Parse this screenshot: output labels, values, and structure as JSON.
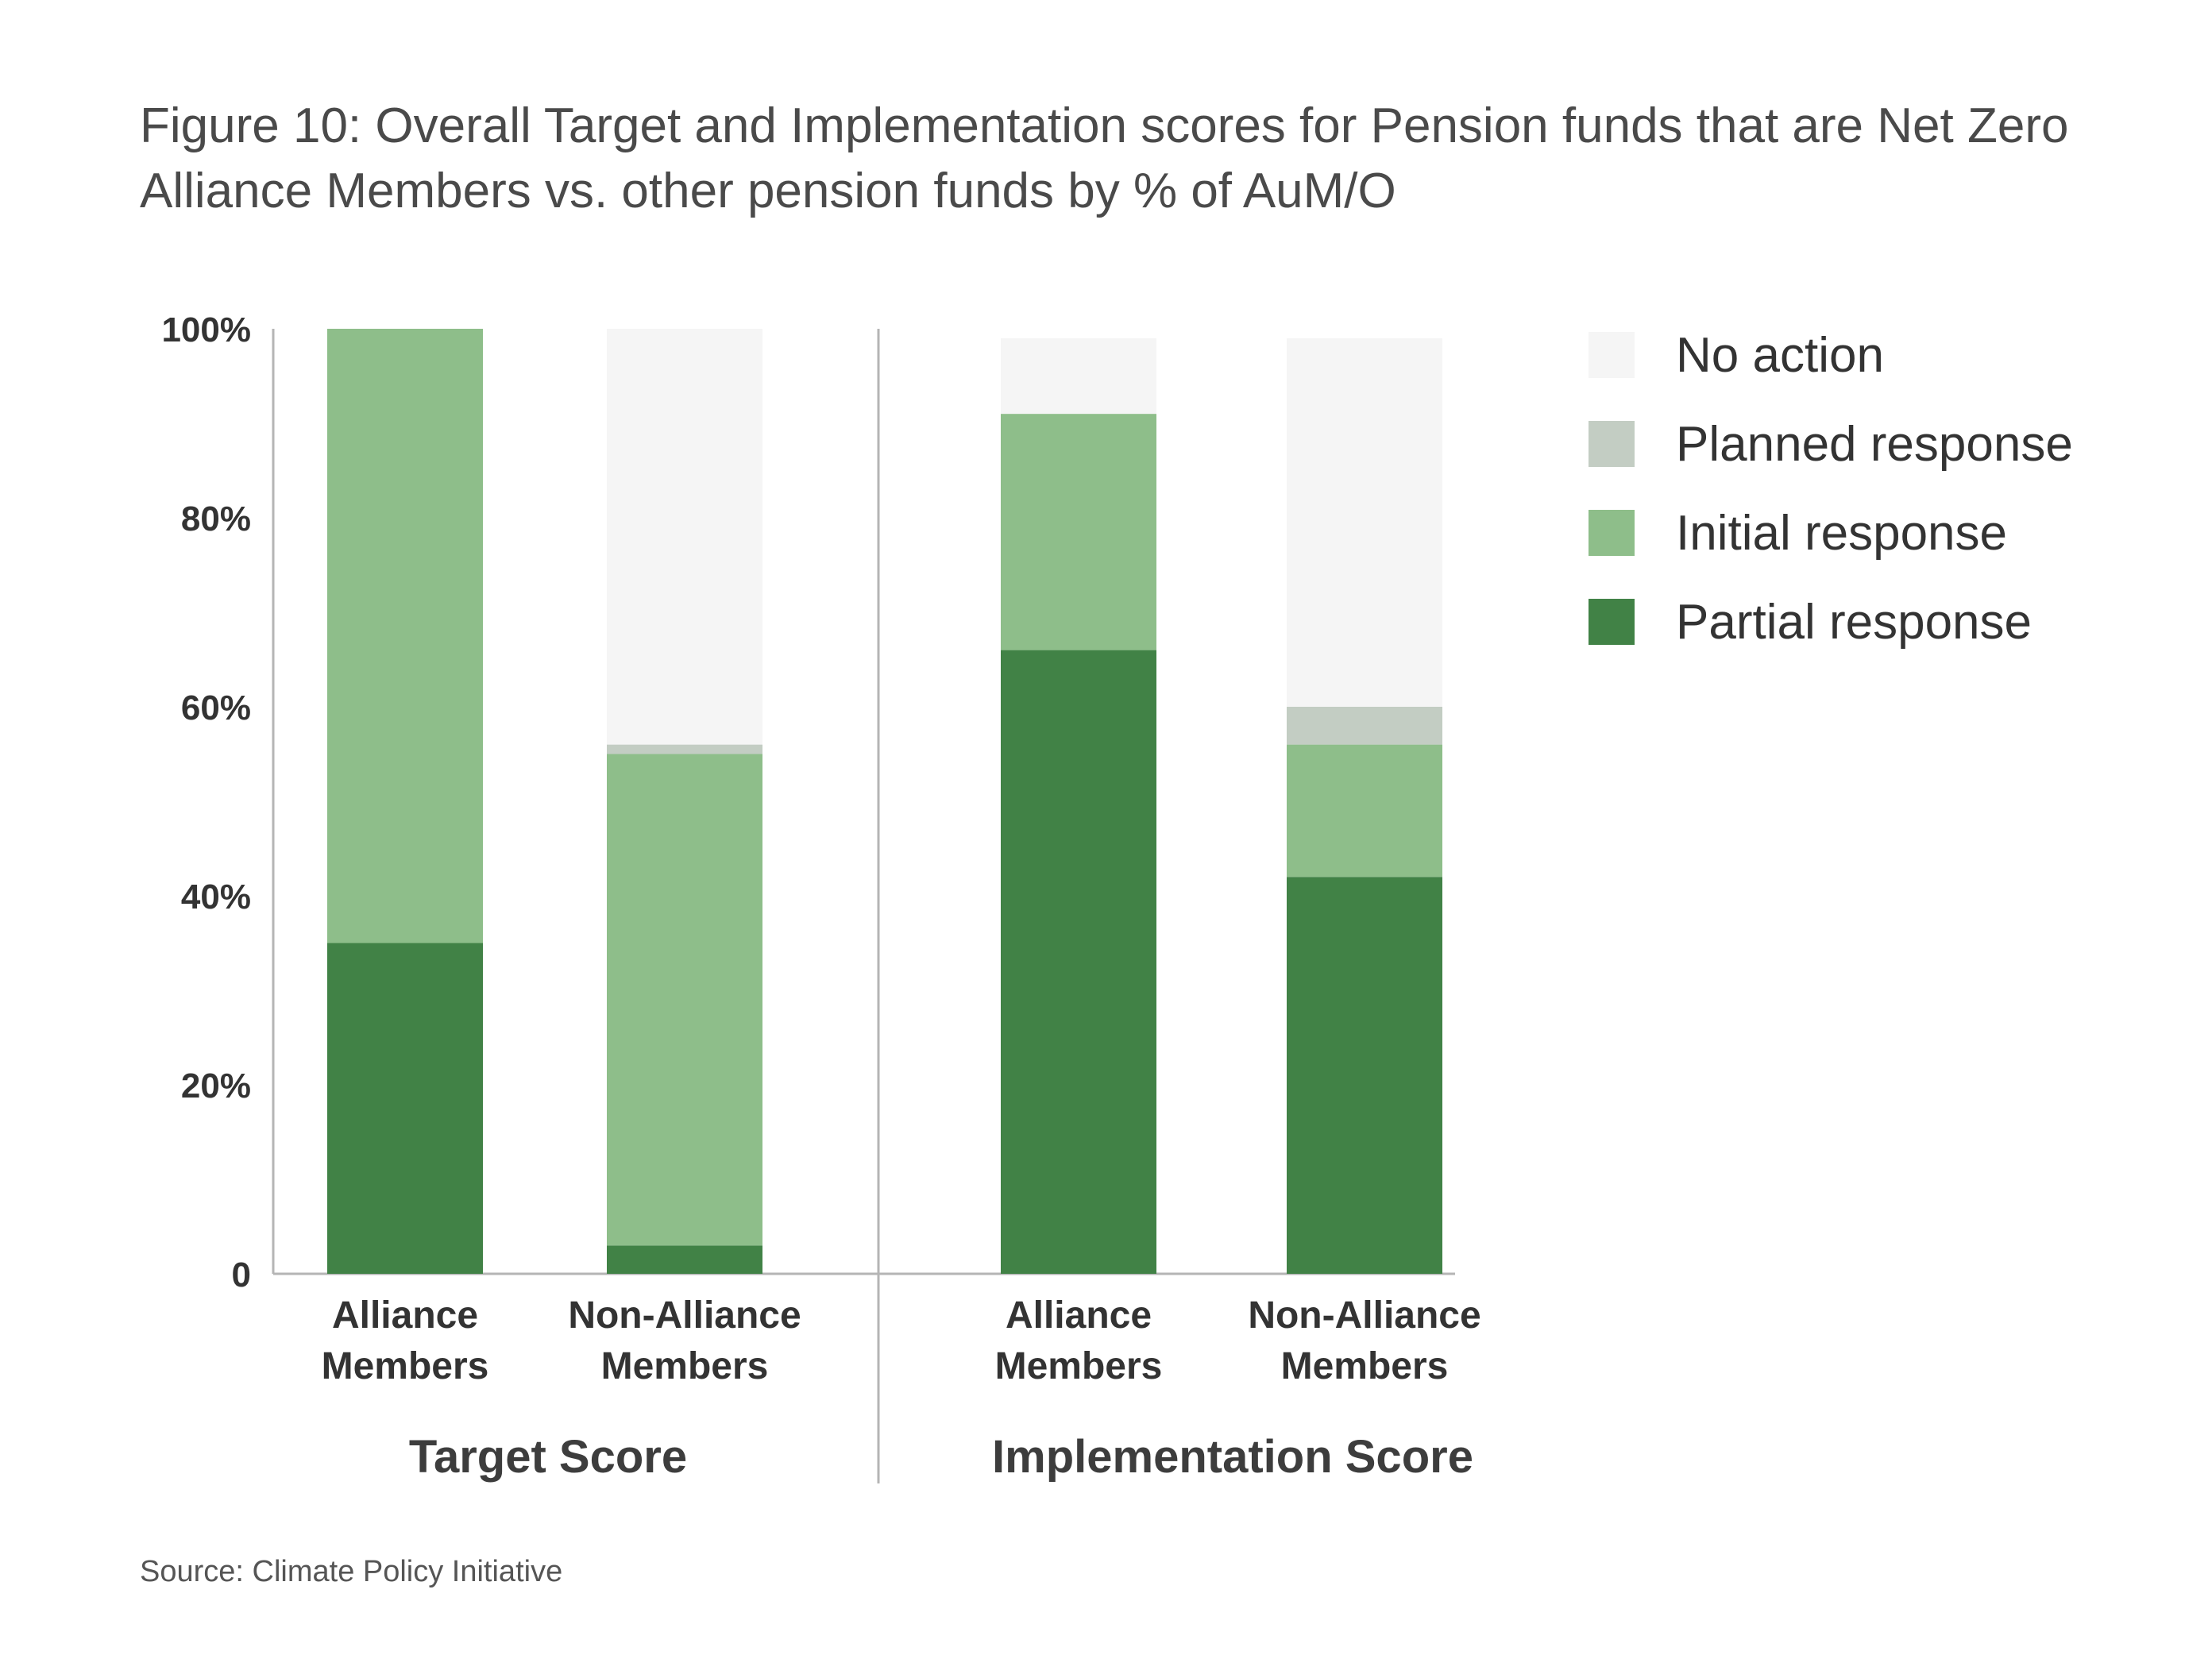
{
  "title_line1": "Figure 10: Overall Target and Implementation scores for Pension funds that are Net Zero",
  "title_line2": "Alliance Members vs. other pension funds by % of AuM/O",
  "source": "Source: Climate Policy Initiative",
  "chart_data": {
    "type": "bar",
    "stacked": true,
    "ylim": [
      0,
      100
    ],
    "yticks": [
      {
        "value": 0,
        "label": "0"
      },
      {
        "value": 20,
        "label": "20%"
      },
      {
        "value": 40,
        "label": "40%"
      },
      {
        "value": 60,
        "label": "60%"
      },
      {
        "value": 80,
        "label": "80%"
      },
      {
        "value": 100,
        "label": "100%"
      }
    ],
    "groups": [
      {
        "label": "Target Score",
        "categories": [
          "Alliance Members",
          "Non-Alliance Members"
        ]
      },
      {
        "label": "Implementation Score",
        "categories": [
          "Alliance Members",
          "Non-Alliance Members"
        ]
      }
    ],
    "category_lines": {
      "Alliance Members": [
        "Alliance",
        "Members"
      ],
      "Non-Alliance Members": [
        "Non-Alliance",
        "Members"
      ]
    },
    "series": [
      {
        "name": "Partial response",
        "color": "#418246",
        "values": [
          35,
          3,
          66,
          42
        ]
      },
      {
        "name": "Initial response",
        "color": "#8ebe8a",
        "values": [
          65,
          52,
          25,
          14
        ]
      },
      {
        "name": "Planned response",
        "color": "#c3cdc3",
        "values": [
          0,
          1,
          0,
          4
        ]
      },
      {
        "name": "No action",
        "color": "#f5f5f5",
        "values": [
          0,
          44,
          8,
          39
        ]
      }
    ],
    "legend_order": [
      "No action",
      "Planned response",
      "Initial response",
      "Partial response"
    ],
    "legend_position": "right",
    "grid": false
  }
}
